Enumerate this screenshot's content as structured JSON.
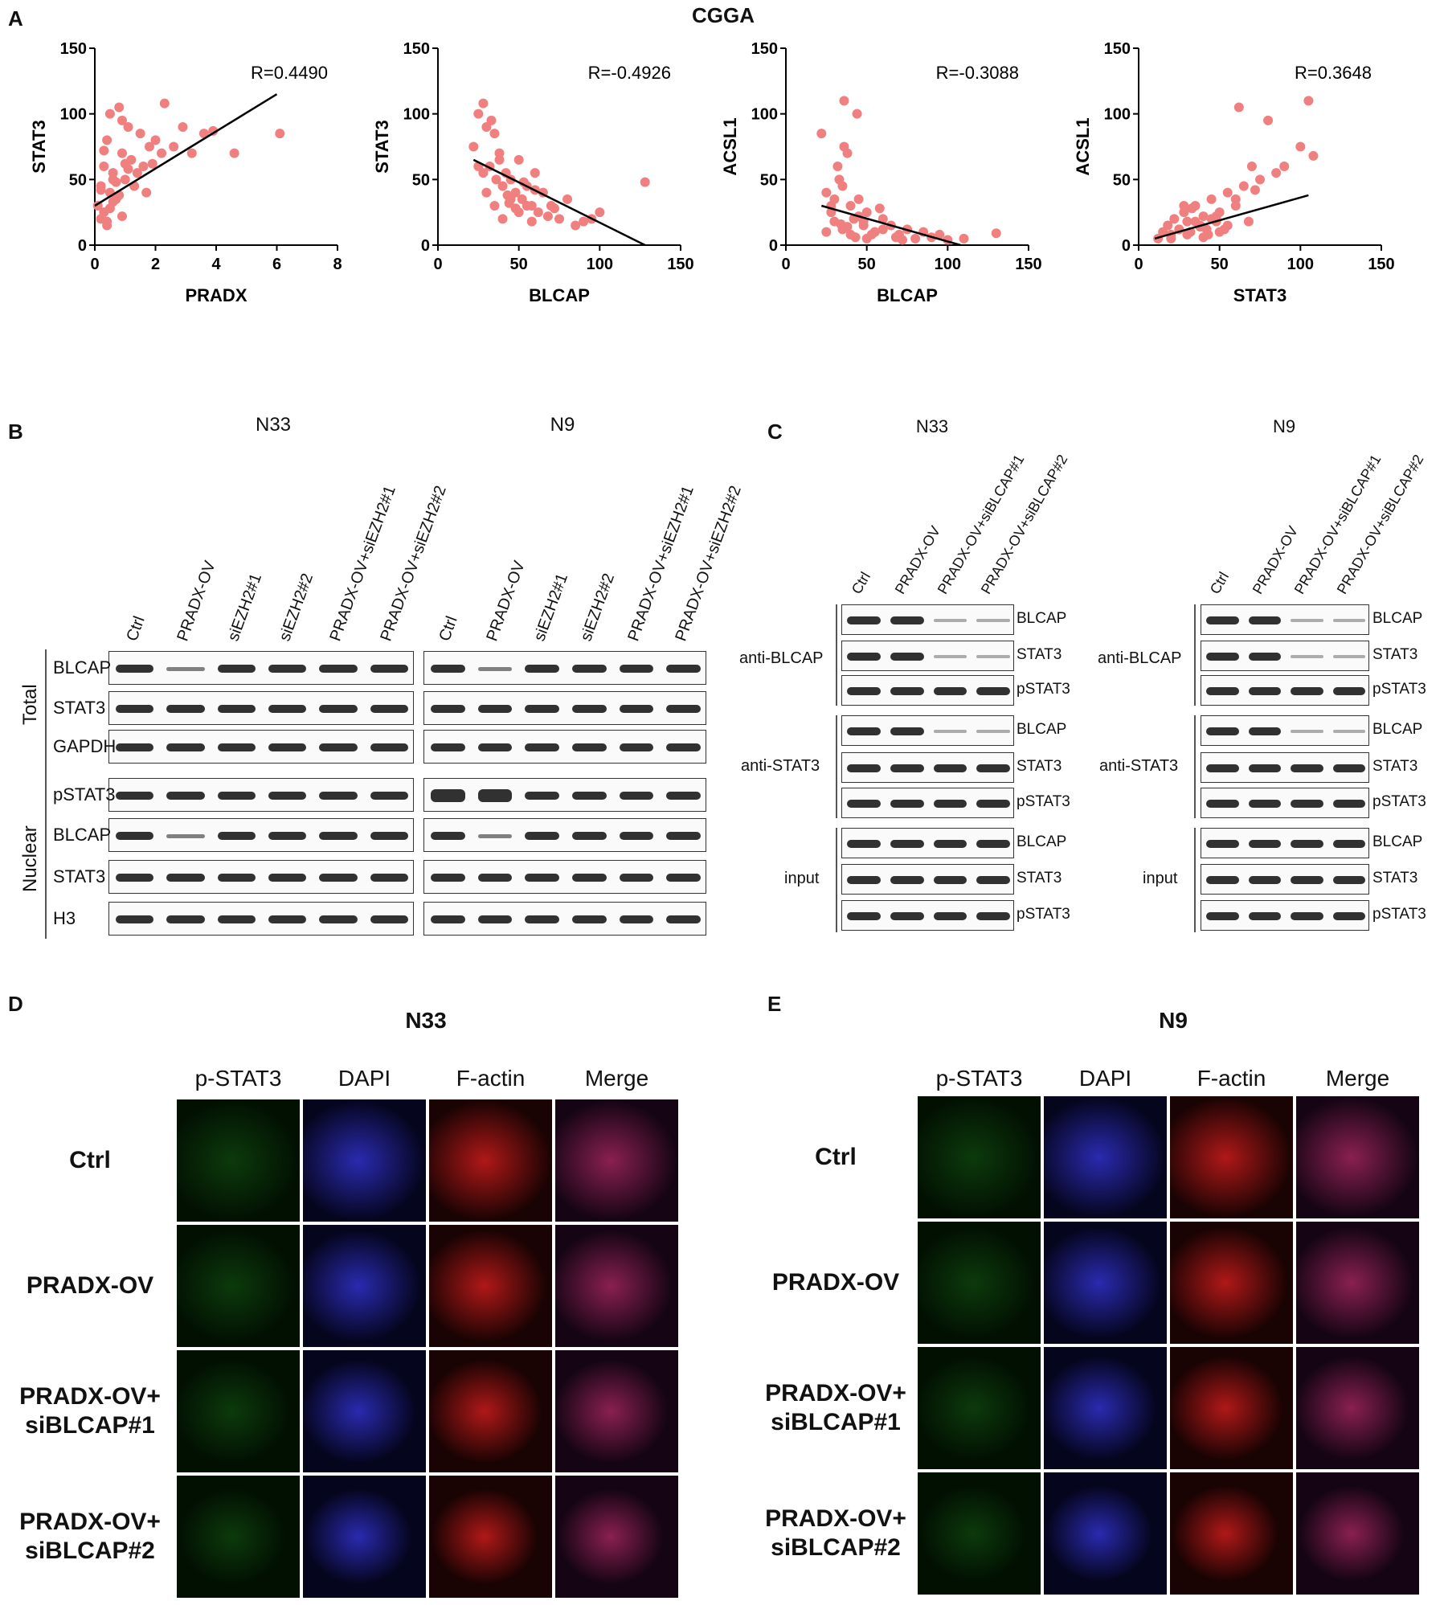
{
  "panel_letters": {
    "a": "A",
    "b": "B",
    "c": "C",
    "d": "D",
    "e": "E"
  },
  "panelA": {
    "title": "CGGA",
    "plots": [
      {
        "ylabel": "STAT3",
        "xlabel": "PRADX",
        "r": "R=0.4490",
        "xlim": [
          0,
          8
        ],
        "xticks": [
          "0",
          "2",
          "4",
          "6",
          "8"
        ],
        "ylim": [
          0,
          150
        ],
        "yticks": [
          "0",
          "50",
          "100",
          "150"
        ]
      },
      {
        "ylabel": "STAT3",
        "xlabel": "BLCAP",
        "r": "R=-0.4926",
        "xlim": [
          0,
          150
        ],
        "xticks": [
          "0",
          "50",
          "100",
          "150"
        ],
        "ylim": [
          0,
          150
        ],
        "yticks": [
          "0",
          "50",
          "100",
          "150"
        ]
      },
      {
        "ylabel": "ACSL1",
        "xlabel": "BLCAP",
        "r": "R=-0.3088",
        "xlim": [
          0,
          150
        ],
        "xticks": [
          "0",
          "50",
          "100",
          "150"
        ],
        "ylim": [
          0,
          150
        ],
        "yticks": [
          "0",
          "50",
          "100",
          "150"
        ]
      },
      {
        "ylabel": "ACSL1",
        "xlabel": "STAT3",
        "r": "R=0.3648",
        "xlim": [
          0,
          150
        ],
        "xticks": [
          "0",
          "50",
          "100",
          "150"
        ],
        "ylim": [
          0,
          150
        ],
        "yticks": [
          "0",
          "50",
          "100",
          "150"
        ]
      }
    ]
  },
  "chart_data": [
    {
      "type": "scatter",
      "xlabel": "PRADX",
      "ylabel": "STAT3",
      "annotation": "R=0.4490",
      "xlim": [
        0,
        8
      ],
      "ylim": [
        0,
        150
      ],
      "trend": {
        "x": [
          0,
          6
        ],
        "y": [
          30,
          115
        ]
      },
      "x": [
        0.1,
        0.2,
        0.3,
        0.3,
        0.4,
        0.5,
        0.5,
        0.6,
        0.7,
        0.8,
        0.9,
        1.0,
        1.1,
        1.2,
        1.3,
        1.5,
        1.6,
        1.8,
        2.0,
        2.3,
        2.6,
        2.9,
        3.2,
        3.6,
        3.9,
        4.6,
        6.1,
        0.2,
        0.4,
        0.6,
        0.8,
        1.0,
        0.3,
        0.5,
        0.7,
        0.9,
        1.4,
        1.9,
        0.2,
        0.6,
        1.1,
        1.7,
        2.2,
        0.4,
        0.9
      ],
      "y": [
        30,
        45,
        60,
        25,
        80,
        40,
        100,
        55,
        35,
        105,
        70,
        50,
        90,
        65,
        45,
        85,
        60,
        75,
        80,
        108,
        75,
        90,
        70,
        85,
        87,
        70,
        85,
        20,
        15,
        50,
        38,
        62,
        72,
        28,
        48,
        95,
        55,
        62,
        42,
        33,
        58,
        40,
        70,
        18,
        22
      ]
    },
    {
      "type": "scatter",
      "xlabel": "BLCAP",
      "ylabel": "STAT3",
      "annotation": "R=-0.4926",
      "xlim": [
        0,
        150
      ],
      "ylim": [
        0,
        150
      ],
      "trend": {
        "x": [
          22,
          128
        ],
        "y": [
          65,
          0
        ]
      },
      "x": [
        22,
        25,
        28,
        30,
        32,
        35,
        38,
        40,
        42,
        45,
        48,
        50,
        52,
        55,
        58,
        60,
        62,
        65,
        70,
        75,
        80,
        85,
        90,
        95,
        100,
        128,
        30,
        35,
        40,
        45,
        50,
        55,
        28,
        33,
        38,
        43,
        48,
        53,
        60,
        68,
        25,
        36,
        44,
        58,
        72
      ],
      "y": [
        75,
        100,
        108,
        90,
        60,
        85,
        70,
        45,
        55,
        50,
        40,
        65,
        35,
        45,
        30,
        55,
        25,
        40,
        30,
        20,
        35,
        15,
        18,
        20,
        25,
        48,
        40,
        30,
        20,
        35,
        25,
        30,
        55,
        95,
        65,
        38,
        28,
        48,
        42,
        22,
        60,
        50,
        32,
        18,
        28
      ]
    },
    {
      "type": "scatter",
      "xlabel": "BLCAP",
      "ylabel": "ACSL1",
      "annotation": "R=-0.3088",
      "xlim": [
        0,
        150
      ],
      "ylim": [
        0,
        150
      ],
      "trend": {
        "x": [
          22,
          108
        ],
        "y": [
          30,
          0
        ]
      },
      "x": [
        22,
        25,
        28,
        30,
        32,
        35,
        38,
        40,
        42,
        45,
        48,
        50,
        55,
        60,
        65,
        70,
        75,
        80,
        85,
        90,
        95,
        100,
        110,
        130,
        30,
        35,
        40,
        45,
        50,
        55,
        28,
        33,
        38,
        43,
        48,
        53,
        60,
        68,
        25,
        36,
        44,
        58,
        72,
        34,
        36
      ],
      "y": [
        85,
        40,
        25,
        35,
        60,
        45,
        70,
        30,
        20,
        35,
        15,
        25,
        10,
        20,
        15,
        8,
        12,
        5,
        10,
        6,
        8,
        4,
        5,
        9,
        18,
        12,
        8,
        22,
        5,
        10,
        30,
        50,
        14,
        6,
        18,
        8,
        12,
        6,
        10,
        110,
        100,
        28,
        4,
        16,
        75
      ]
    },
    {
      "type": "scatter",
      "xlabel": "STAT3",
      "ylabel": "ACSL1",
      "annotation": "R=0.3648",
      "xlim": [
        0,
        150
      ],
      "ylim": [
        0,
        150
      ],
      "trend": {
        "x": [
          10,
          105
        ],
        "y": [
          5,
          38
        ]
      },
      "x": [
        12,
        15,
        18,
        20,
        22,
        25,
        28,
        30,
        32,
        35,
        38,
        40,
        42,
        45,
        48,
        50,
        55,
        60,
        62,
        65,
        70,
        75,
        80,
        85,
        90,
        100,
        105,
        108,
        20,
        25,
        30,
        35,
        40,
        45,
        50,
        55,
        28,
        33,
        38,
        43,
        48,
        53,
        60,
        68,
        72
      ],
      "y": [
        5,
        10,
        15,
        8,
        20,
        12,
        25,
        18,
        10,
        30,
        15,
        22,
        12,
        35,
        18,
        25,
        40,
        30,
        105,
        45,
        60,
        50,
        95,
        55,
        60,
        75,
        110,
        68,
        5,
        12,
        8,
        18,
        6,
        20,
        10,
        15,
        30,
        28,
        14,
        8,
        22,
        12,
        35,
        18,
        42
      ]
    }
  ],
  "panelB": {
    "n33": "N33",
    "n9": "N9",
    "conditions": [
      "Ctrl",
      "PRADX-OV",
      "siEZH2#1",
      "siEZH2#2",
      "PRADX-OV+siEZH2#1",
      "PRADX-OV+siEZH2#2"
    ],
    "rows": [
      "BLCAP",
      "STAT3",
      "GAPDH",
      "pSTAT3",
      "BLCAP",
      "STAT3",
      "H3"
    ],
    "group_total": "Total",
    "group_nuclear": "Nuclear"
  },
  "panelC": {
    "n33": "N33",
    "n9": "N9",
    "conditions": [
      "Ctrl",
      "PRADX-OV",
      "PRADX-OV+siBLCAP#1",
      "PRADX-OV+siBLCAP#2"
    ],
    "row_targets": [
      "BLCAP",
      "STAT3",
      "pSTAT3",
      "BLCAP",
      "STAT3",
      "pSTAT3",
      "BLCAP",
      "STAT3",
      "pSTAT3"
    ],
    "groups": [
      "anti-BLCAP",
      "anti-STAT3",
      "input"
    ]
  },
  "panelD": {
    "title": "N33",
    "channels": [
      "p-STAT3",
      "DAPI",
      "F-actin",
      "Merge"
    ],
    "rows": [
      "Ctrl",
      "PRADX-OV",
      "PRADX-OV+\nsiBLCAP#1",
      "PRADX-OV+\nsiBLCAP#2"
    ]
  },
  "panelE": {
    "title": "N9",
    "channels": [
      "p-STAT3",
      "DAPI",
      "F-actin",
      "Merge"
    ],
    "rows": [
      "Ctrl",
      "PRADX-OV",
      "PRADX-OV+\nsiBLCAP#1",
      "PRADX-OV+\nsiBLCAP#2"
    ]
  }
}
